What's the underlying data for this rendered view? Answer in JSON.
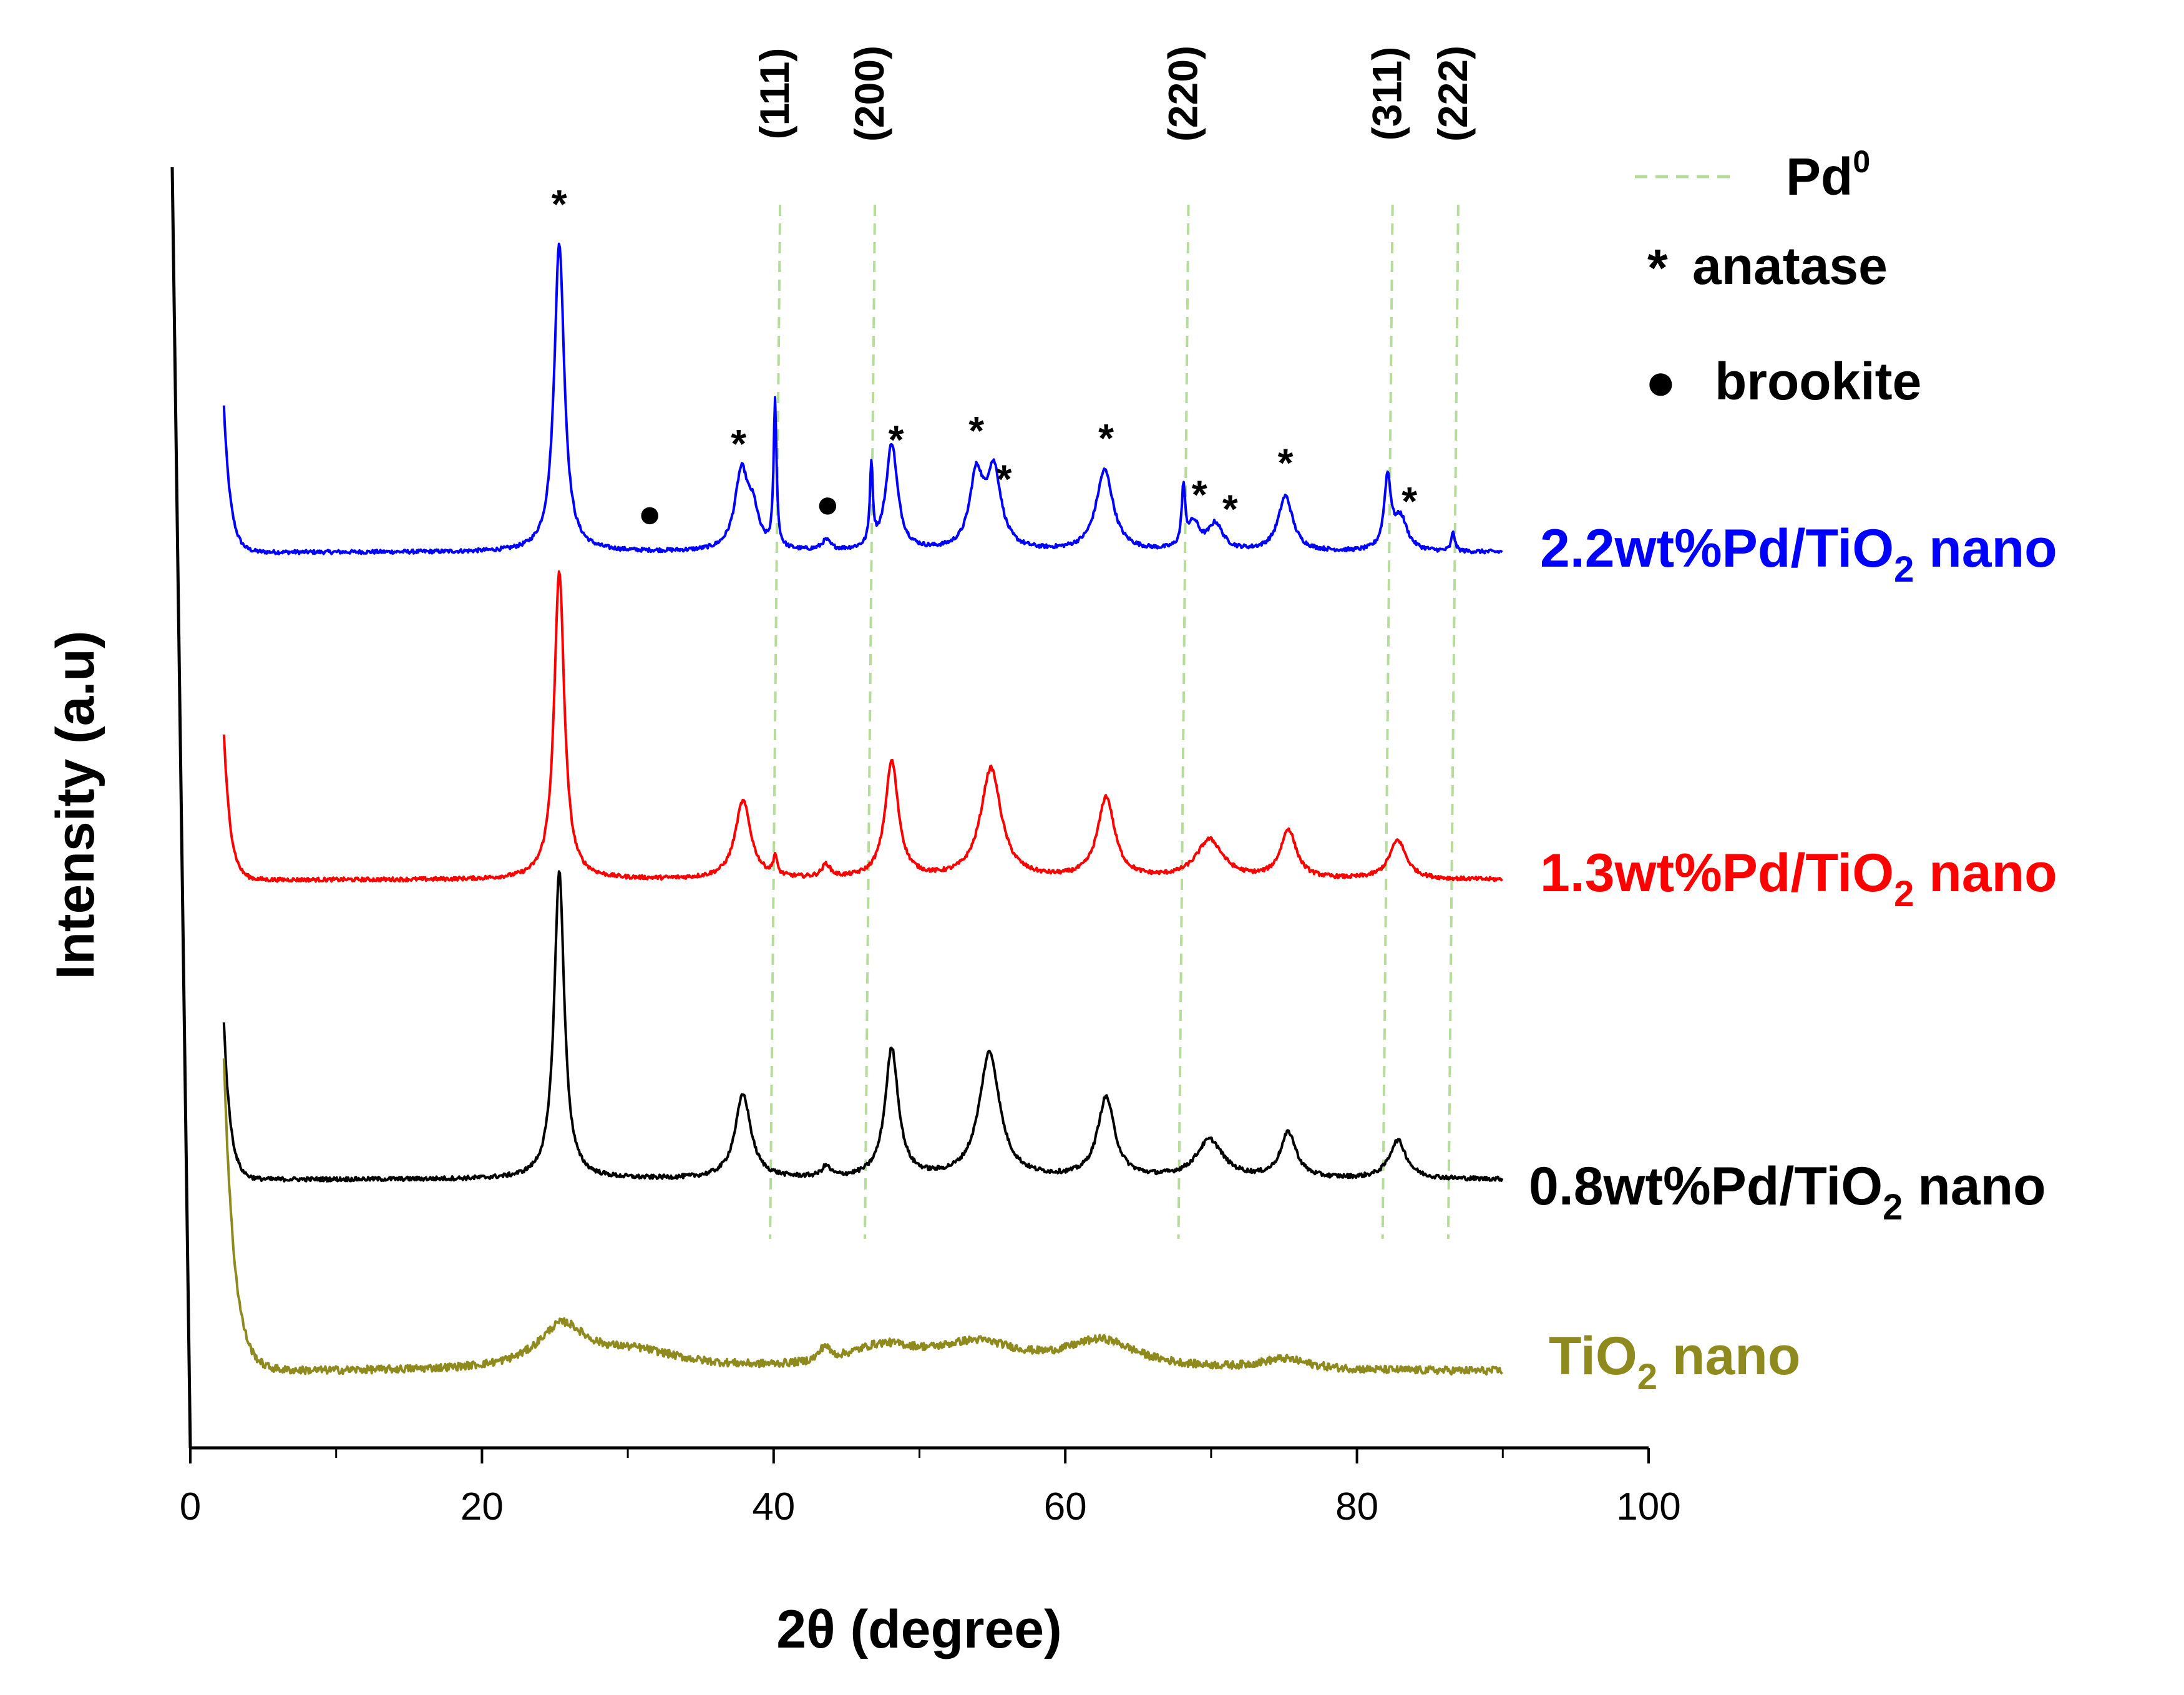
{
  "chart_data": {
    "type": "line",
    "title": "",
    "xlabel": "2θ (degree)",
    "ylabel": "Intensity (a.u)",
    "xlim": [
      0,
      100
    ],
    "xticks": [
      0,
      20,
      40,
      60,
      80,
      100
    ],
    "xtick_labels": [
      "0",
      "20",
      "40",
      "60",
      "80",
      "100"
    ],
    "y_ticks_shown": false,
    "legend": {
      "placement": "top-right",
      "entries": [
        {
          "label": "Pd",
          "superscript": "0",
          "style": "dashed-line",
          "color": "#b5dc9a"
        },
        {
          "label": "anatase",
          "symbol": "*"
        },
        {
          "label": "brookite",
          "symbol": "●"
        }
      ]
    },
    "reference_lines": {
      "name": "Pd0",
      "color": "#b5dc9a",
      "positions": [
        {
          "x": 40.1,
          "label": "(111)"
        },
        {
          "x": 46.6,
          "label": "(200)"
        },
        {
          "x": 68.1,
          "label": "(220)"
        },
        {
          "x": 82.1,
          "label": "(311)"
        },
        {
          "x": 86.6,
          "label": "(222)"
        }
      ]
    },
    "series": [
      {
        "name": "2.2wt%Pd/TiO2 nano",
        "label_main": "2.2wt%Pd/TiO",
        "label_sub": "2",
        "label_tail": " nano",
        "color": "#0000ff",
        "offset": 3,
        "peaks": [
          {
            "x": 25.3,
            "h": 0.95,
            "w": 0.42
          },
          {
            "x": 37.8,
            "h": 0.24,
            "w": 0.55
          },
          {
            "x": 38.6,
            "h": 0.1,
            "w": 0.45
          },
          {
            "x": 40.1,
            "h": 0.45,
            "w": 0.12
          },
          {
            "x": 43.6,
            "h": 0.03,
            "w": 0.35
          },
          {
            "x": 46.7,
            "h": 0.25,
            "w": 0.12
          },
          {
            "x": 48.1,
            "h": 0.33,
            "w": 0.48
          },
          {
            "x": 53.9,
            "h": 0.22,
            "w": 0.55
          },
          {
            "x": 55.1,
            "h": 0.24,
            "w": 0.6
          },
          {
            "x": 62.7,
            "h": 0.25,
            "w": 0.7
          },
          {
            "x": 68.1,
            "h": 0.18,
            "w": 0.14
          },
          {
            "x": 68.8,
            "h": 0.08,
            "w": 0.5
          },
          {
            "x": 70.3,
            "h": 0.08,
            "w": 0.6
          },
          {
            "x": 75.1,
            "h": 0.17,
            "w": 0.6
          },
          {
            "x": 82.1,
            "h": 0.22,
            "w": 0.28
          },
          {
            "x": 83.0,
            "h": 0.1,
            "w": 0.55
          },
          {
            "x": 86.6,
            "h": 0.06,
            "w": 0.14
          }
        ]
      },
      {
        "name": "1.3wt%Pd/TiO2 nano",
        "label_main": "1.3wt%Pd/TiO",
        "label_sub": "2",
        "label_tail": " nano",
        "color": "#ff0000",
        "offset": 2,
        "peaks": [
          {
            "x": 25.3,
            "h": 0.95,
            "w": 0.42
          },
          {
            "x": 37.9,
            "h": 0.24,
            "w": 0.65
          },
          {
            "x": 40.1,
            "h": 0.06,
            "w": 0.15
          },
          {
            "x": 43.6,
            "h": 0.04,
            "w": 0.35
          },
          {
            "x": 48.1,
            "h": 0.36,
            "w": 0.55
          },
          {
            "x": 54.9,
            "h": 0.34,
            "w": 0.85
          },
          {
            "x": 62.8,
            "h": 0.25,
            "w": 0.7
          },
          {
            "x": 69.9,
            "h": 0.12,
            "w": 1.1
          },
          {
            "x": 75.3,
            "h": 0.15,
            "w": 0.65
          },
          {
            "x": 82.8,
            "h": 0.12,
            "w": 0.7
          }
        ]
      },
      {
        "name": "0.8wt%Pd/TiO2 nano",
        "label_main": "0.8wt%Pd/TiO",
        "label_sub": "2",
        "label_tail": " nano",
        "color": "#000000",
        "offset": 1,
        "peaks": [
          {
            "x": 25.3,
            "h": 0.88,
            "w": 0.42
          },
          {
            "x": 37.9,
            "h": 0.24,
            "w": 0.65
          },
          {
            "x": 43.6,
            "h": 0.03,
            "w": 0.35
          },
          {
            "x": 48.1,
            "h": 0.37,
            "w": 0.55
          },
          {
            "x": 54.8,
            "h": 0.36,
            "w": 0.85
          },
          {
            "x": 62.8,
            "h": 0.23,
            "w": 0.7
          },
          {
            "x": 69.9,
            "h": 0.11,
            "w": 1.1
          },
          {
            "x": 75.3,
            "h": 0.13,
            "w": 0.65
          },
          {
            "x": 82.8,
            "h": 0.11,
            "w": 0.7
          }
        ]
      },
      {
        "name": "TiO2 nano",
        "label_main": "TiO",
        "label_sub": "2",
        "label_tail": " nano",
        "color": "#8f8a1e",
        "offset": 0,
        "peaks": [
          {
            "x": 25.5,
            "h": 0.12,
            "w": 2.0
          },
          {
            "x": 30.5,
            "h": 0.05,
            "w": 4.0
          },
          {
            "x": 43.5,
            "h": 0.04,
            "w": 0.4
          },
          {
            "x": 47.5,
            "h": 0.06,
            "w": 3.0
          },
          {
            "x": 54.0,
            "h": 0.07,
            "w": 3.5
          },
          {
            "x": 62.5,
            "h": 0.08,
            "w": 3.0
          },
          {
            "x": 75.0,
            "h": 0.03,
            "w": 2.0
          }
        ]
      }
    ],
    "annotations": [
      {
        "symbol": "*",
        "x": 25.3,
        "series": 0,
        "above": 0.08
      },
      {
        "symbol": "*",
        "x": 37.6,
        "series": 0,
        "above": 0.06
      },
      {
        "symbol": "●",
        "x": 31.5,
        "series": 0,
        "above": 0.07
      },
      {
        "symbol": "●",
        "x": 43.7,
        "series": 0,
        "above": 0.07
      },
      {
        "symbol": "*",
        "x": 48.4,
        "series": 0,
        "above": 0.06
      },
      {
        "symbol": "*",
        "x": 53.9,
        "series": 0,
        "above": 0.06
      },
      {
        "symbol": "*",
        "x": 55.8,
        "series": 0,
        "above": 0.06
      },
      {
        "symbol": "*",
        "x": 62.8,
        "series": 0,
        "above": 0.06
      },
      {
        "symbol": "*",
        "x": 69.2,
        "series": 0,
        "above": 0.06
      },
      {
        "symbol": "*",
        "x": 71.3,
        "series": 0,
        "above": 0.06
      },
      {
        "symbol": "*",
        "x": 75.1,
        "series": 0,
        "above": 0.06
      },
      {
        "symbol": "*",
        "x": 83.6,
        "series": 0,
        "above": 0.06
      }
    ]
  }
}
